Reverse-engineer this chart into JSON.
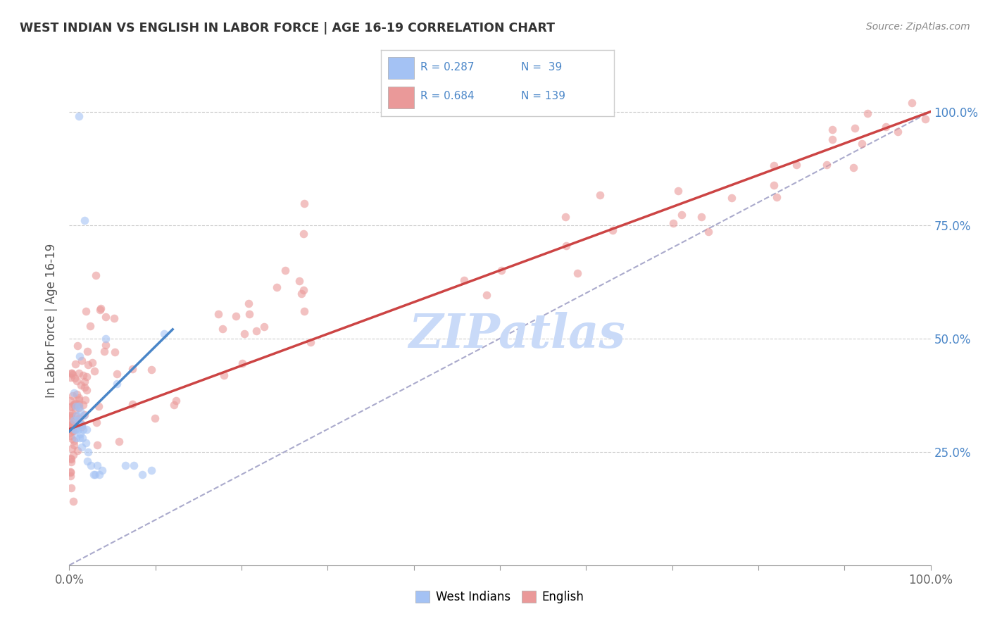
{
  "title": "WEST INDIAN VS ENGLISH IN LABOR FORCE | AGE 16-19 CORRELATION CHART",
  "source": "Source: ZipAtlas.com",
  "ylabel": "In Labor Force | Age 16-19",
  "west_indian_R": "0.287",
  "west_indian_N": "39",
  "english_R": "0.684",
  "english_N": "139",
  "blue_fill": "#a4c2f4",
  "blue_edge": "#6d9eeb",
  "pink_fill": "#ea9999",
  "pink_edge": "#e06666",
  "blue_line": "#4a86c8",
  "pink_line": "#cc4444",
  "ref_line_color": "#aaaacc",
  "title_color": "#333333",
  "tick_color_right": "#4a86c8",
  "grid_color": "#cccccc",
  "watermark_color": "#c9daf8",
  "background": "#ffffff"
}
